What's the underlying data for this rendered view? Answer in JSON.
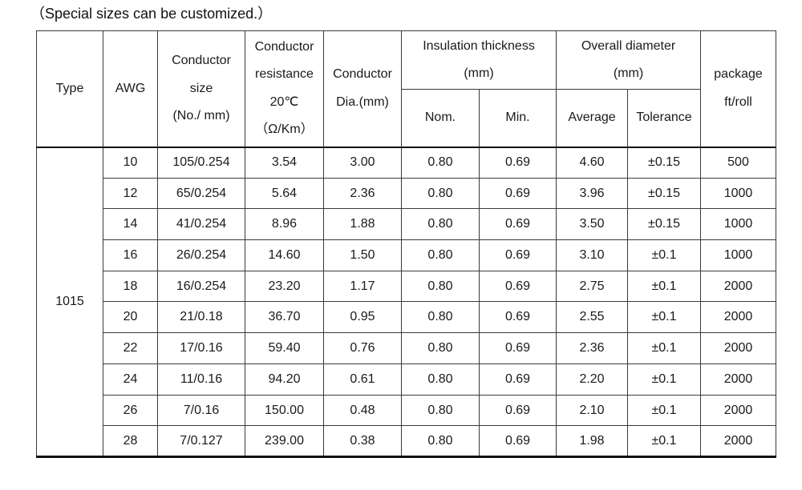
{
  "title": "（Special sizes can be customized.）",
  "colors": {
    "background": "#ffffff",
    "text": "#1a1a1a",
    "grid_line": "#3a3a3a",
    "heavy_line": "#111111"
  },
  "table": {
    "type_value": "1015",
    "header": {
      "type": "Type",
      "awg": "AWG",
      "conductor_size": "Conductor\nsize\n(No./ mm)",
      "conductor_resistance": "Conductor\nresistance\n20℃\n（Ω/Km）",
      "conductor_dia": "Conductor\nDia.(mm)",
      "insulation_thickness": "Insulation thickness\n(mm)",
      "insulation_sub": {
        "nom": "Nom.",
        "min": "Min."
      },
      "overall_diameter": "Overall diameter\n(mm)",
      "overall_sub": {
        "average": "Average",
        "tolerance": "Tolerance"
      },
      "package": "package\nft/roll"
    },
    "column_keys": [
      "awg",
      "conductor-size",
      "conductor-resistance",
      "conductor-dia",
      "insulation-nom",
      "insulation-min",
      "overall-average",
      "overall-tolerance",
      "package"
    ],
    "rows": [
      {
        "cells": [
          "10",
          "105/0.254",
          "3.54",
          "3.00",
          "0.80",
          "0.69",
          "4.60",
          "±0.15",
          "500"
        ]
      },
      {
        "cells": [
          "12",
          "65/0.254",
          "5.64",
          "2.36",
          "0.80",
          "0.69",
          "3.96",
          "±0.15",
          "1000"
        ]
      },
      {
        "cells": [
          "14",
          "41/0.254",
          "8.96",
          "1.88",
          "0.80",
          "0.69",
          "3.50",
          "±0.15",
          "1000"
        ]
      },
      {
        "cells": [
          "16",
          "26/0.254",
          "14.60",
          "1.50",
          "0.80",
          "0.69",
          "3.10",
          "±0.1",
          "1000"
        ]
      },
      {
        "cells": [
          "18",
          "16/0.254",
          "23.20",
          "1.17",
          "0.80",
          "0.69",
          "2.75",
          "±0.1",
          "2000"
        ]
      },
      {
        "cells": [
          "20",
          "21/0.18",
          "36.70",
          "0.95",
          "0.80",
          "0.69",
          "2.55",
          "±0.1",
          "2000"
        ]
      },
      {
        "cells": [
          "22",
          "17/0.16",
          "59.40",
          "0.76",
          "0.80",
          "0.69",
          "2.36",
          "±0.1",
          "2000"
        ]
      },
      {
        "cells": [
          "24",
          "11/0.16",
          "94.20",
          "0.61",
          "0.80",
          "0.69",
          "2.20",
          "±0.1",
          "2000"
        ]
      },
      {
        "cells": [
          "26",
          "7/0.16",
          "150.00",
          "0.48",
          "0.80",
          "0.69",
          "2.10",
          "±0.1",
          "2000"
        ]
      },
      {
        "cells": [
          "28",
          "7/0.127",
          "239.00",
          "0.38",
          "0.80",
          "0.69",
          "1.98",
          "±0.1",
          "2000"
        ]
      }
    ]
  }
}
